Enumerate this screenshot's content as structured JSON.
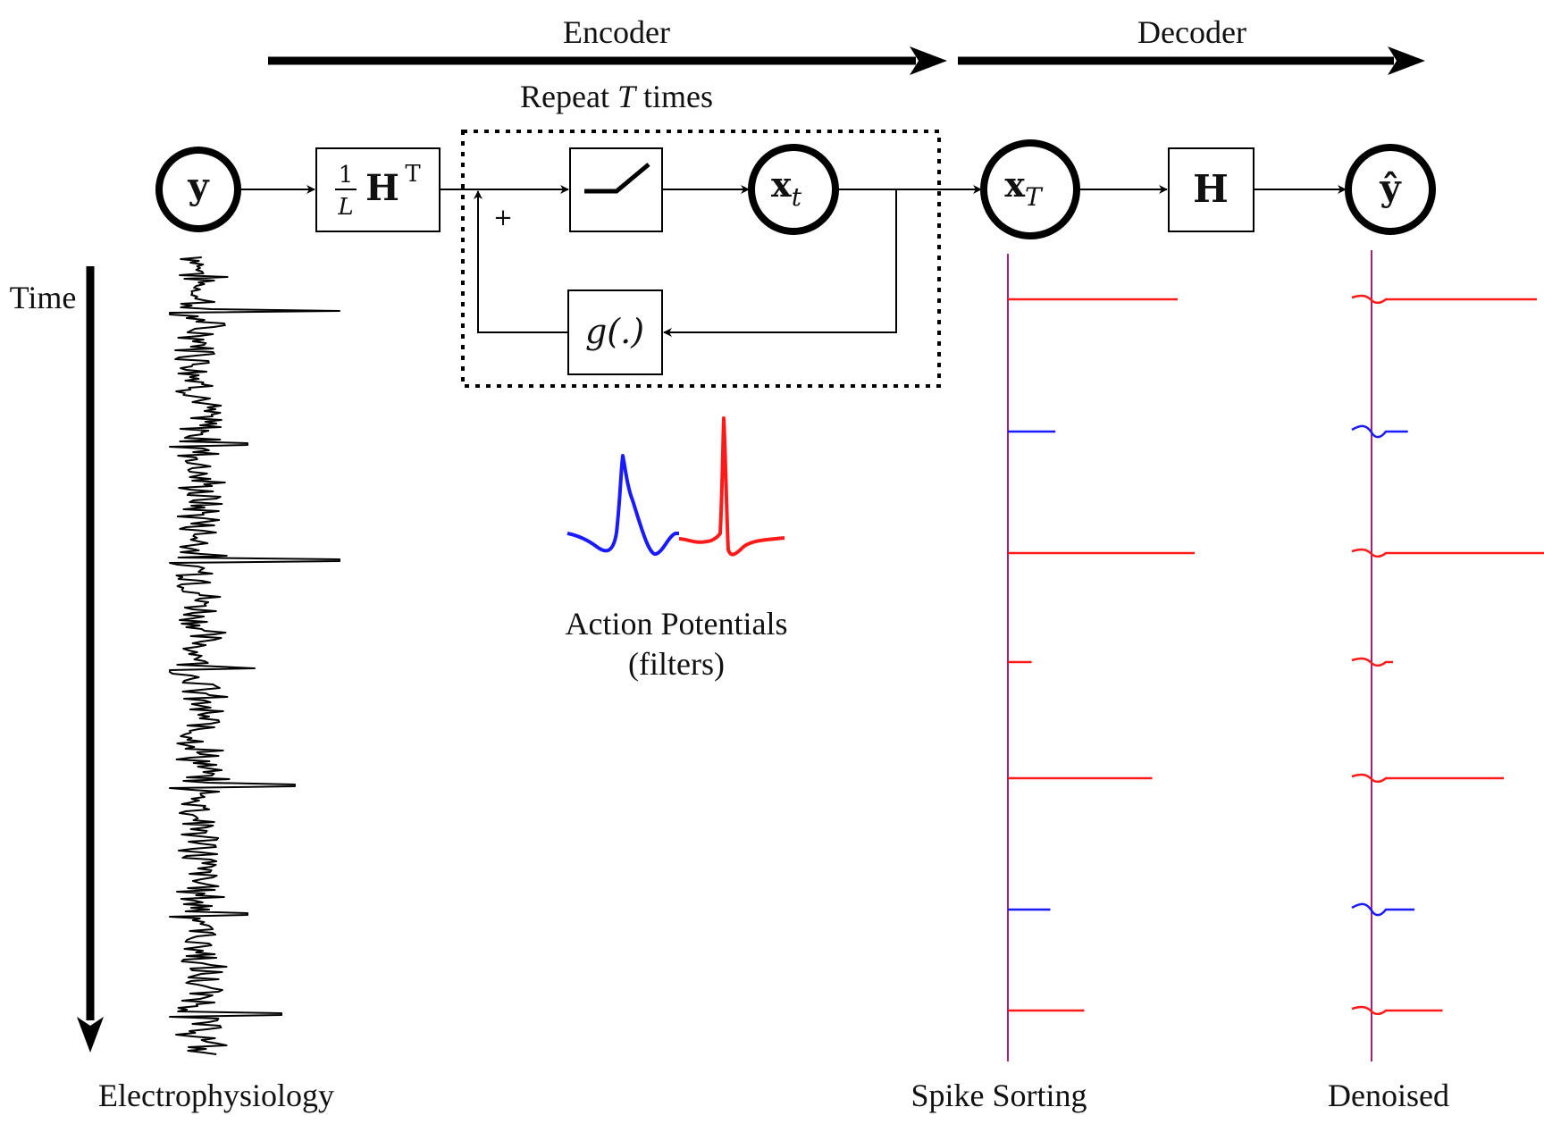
{
  "labels": {
    "encoder": "Encoder",
    "decoder": "Decoder",
    "repeat_prefix": "Repeat ",
    "repeat_var": "T",
    "repeat_suffix": " times",
    "time": "Time",
    "electrophysiology": "Electrophysiology",
    "action_potentials": "Action Potentials",
    "filters": "(filters)",
    "spike_sorting": "Spike Sorting",
    "denoised": "Denoised",
    "plus": "+"
  },
  "nodes": {
    "y": "y",
    "ht_frac_num": "1",
    "ht_frac_den": "L",
    "ht_main": "H",
    "ht_sup": "T",
    "x_t_main": "x",
    "x_t_sub": "t",
    "x_T_main": "x",
    "x_T_sub": "T",
    "g": "g(.)",
    "h": "H",
    "yhat": "ŷ"
  },
  "colors": {
    "black": "#000000",
    "blue": "#1a1aff",
    "red": "#ff1a1a",
    "axis_purple": "#a0207a"
  },
  "spikes": {
    "sorting": [
      {
        "color": "red",
        "amplitude": 1.0
      },
      {
        "color": "blue",
        "amplitude": 0.28
      },
      {
        "color": "red",
        "amplitude": 1.1
      },
      {
        "color": "red",
        "amplitude": 0.14
      },
      {
        "color": "red",
        "amplitude": 0.85
      },
      {
        "color": "blue",
        "amplitude": 0.25
      },
      {
        "color": "red",
        "amplitude": 0.45
      }
    ],
    "denoised": [
      {
        "color": "red",
        "amplitude": 1.0
      },
      {
        "color": "blue",
        "amplitude": 0.22
      },
      {
        "color": "red",
        "amplitude": 1.1
      },
      {
        "color": "red",
        "amplitude": 0.13
      },
      {
        "color": "red",
        "amplitude": 0.8
      },
      {
        "color": "blue",
        "amplitude": 0.26
      },
      {
        "color": "red",
        "amplitude": 0.43
      }
    ]
  }
}
